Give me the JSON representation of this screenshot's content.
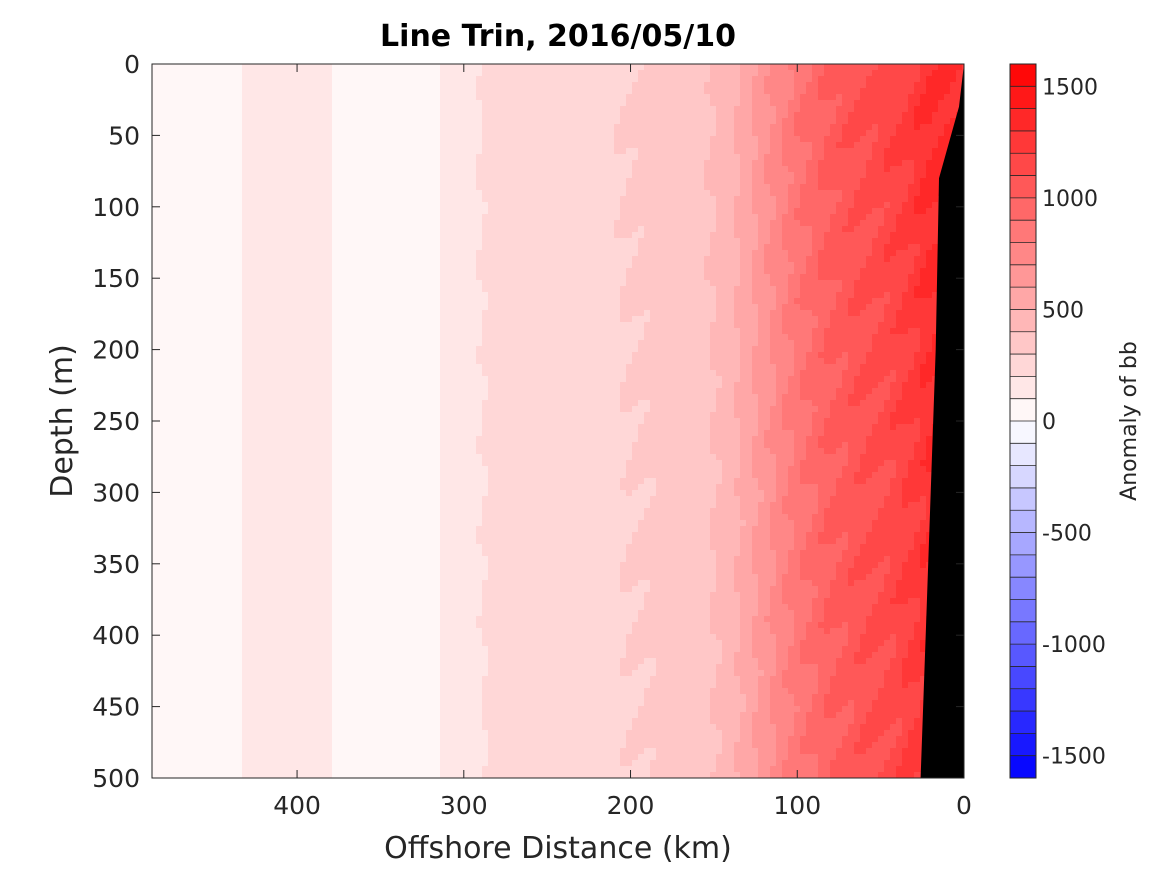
{
  "chart_data": {
    "type": "heatmap",
    "title": "Line Trin, 2016/05/10",
    "xlabel": "Offshore Distance (km)",
    "ylabel": "Depth (m)",
    "xlim": [
      487,
      0
    ],
    "ylim": [
      0,
      500
    ],
    "x_reversed": true,
    "y_reversed": true,
    "xticks": [
      400,
      300,
      200,
      100,
      0
    ],
    "yticks": [
      0,
      50,
      100,
      150,
      200,
      250,
      300,
      350,
      400,
      450,
      500
    ],
    "colorbar": {
      "label": "Anomaly of bb",
      "range": [
        -1600,
        1600
      ],
      "levels": 32,
      "ticks": [
        1500,
        1000,
        500,
        0,
        -500,
        -1000,
        -1500
      ],
      "colors": {
        "negative_max": "#0000ff",
        "zero": "#ffffff",
        "positive_max": "#ff0000"
      }
    },
    "bathymetry": {
      "fill": "#000000",
      "points": [
        [
          0,
          0
        ],
        [
          3,
          30
        ],
        [
          15,
          80
        ],
        [
          17,
          200
        ],
        [
          20,
          300
        ],
        [
          23,
          400
        ],
        [
          26,
          500
        ]
      ]
    },
    "depth_profile": {
      "depths": [
        0,
        50,
        100,
        150,
        200,
        250,
        300,
        350,
        400,
        450,
        500
      ],
      "offsets": [
        0,
        30,
        15,
        20,
        0,
        10,
        -10,
        10,
        0,
        -10,
        0
      ]
    },
    "anomaly_by_distance": {
      "distance": [
        487,
        460,
        440,
        420,
        400,
        380,
        360,
        340,
        320,
        300,
        280,
        260,
        240,
        220,
        200,
        180,
        160,
        140,
        120,
        100,
        80,
        60,
        40,
        20,
        0
      ],
      "value": [
        0,
        20,
        80,
        150,
        160,
        100,
        20,
        0,
        80,
        160,
        230,
        240,
        230,
        260,
        300,
        320,
        350,
        450,
        650,
        850,
        1000,
        1080,
        1150,
        1280,
        1300
      ]
    }
  }
}
